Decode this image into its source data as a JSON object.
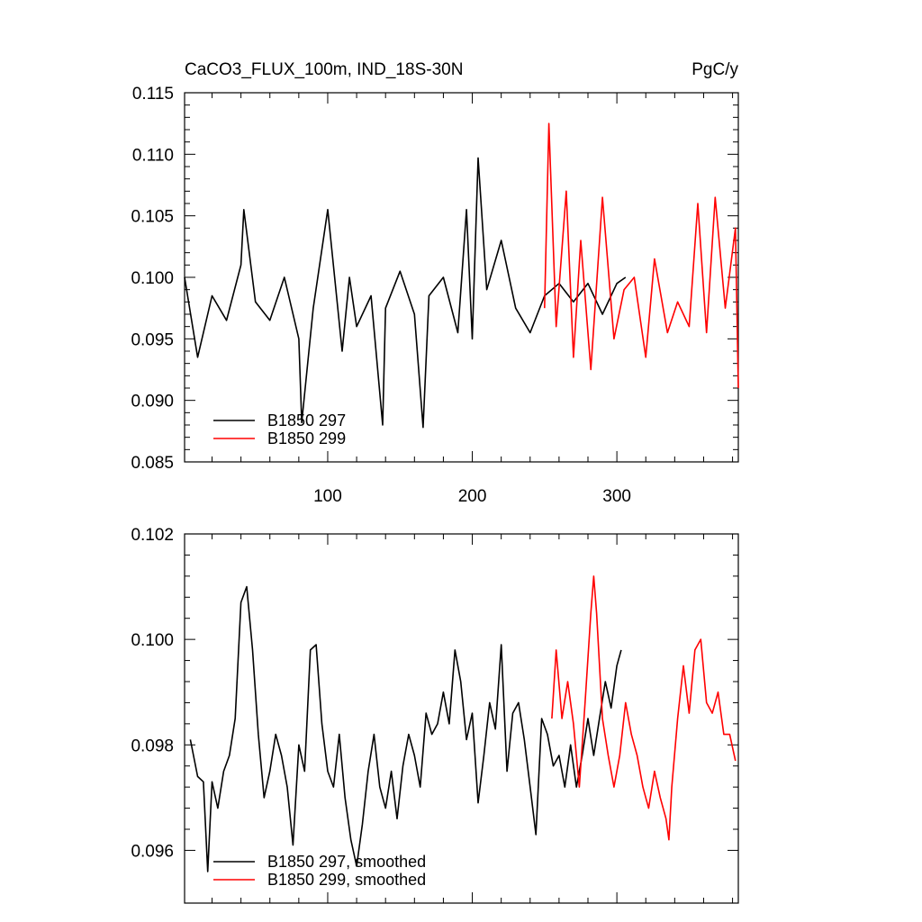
{
  "figure": {
    "left_title": "CaCO3_FLUX_100m, IND_18S-30N",
    "right_title": "PgC/y"
  },
  "chart_data": [
    {
      "type": "line",
      "xlim": [
        1,
        384
      ],
      "ylim": [
        0.085,
        0.115
      ],
      "yticks": [
        "0.085",
        "0.090",
        "0.095",
        "0.100",
        "0.105",
        "0.110",
        "0.115"
      ],
      "xticks": [
        "100",
        "200",
        "300"
      ],
      "legend_position": "bottom-left",
      "series": [
        {
          "name": "B1850 297",
          "color": "#000000",
          "x": [
            1,
            10,
            20,
            30,
            40,
            42,
            50,
            60,
            70,
            80,
            82,
            90,
            100,
            110,
            115,
            120,
            130,
            138,
            140,
            150,
            160,
            166,
            170,
            180,
            190,
            196,
            200,
            204,
            210,
            220,
            230,
            240,
            250,
            260,
            270,
            280,
            290,
            300,
            306
          ],
          "y": [
            0.1,
            0.0935,
            0.0985,
            0.0965,
            0.101,
            0.1055,
            0.098,
            0.0965,
            0.1,
            0.095,
            0.0882,
            0.0975,
            0.1055,
            0.094,
            0.1,
            0.096,
            0.0985,
            0.088,
            0.0975,
            0.1005,
            0.097,
            0.0878,
            0.0985,
            0.1,
            0.0955,
            0.1055,
            0.095,
            0.1097,
            0.099,
            0.103,
            0.0975,
            0.0955,
            0.0985,
            0.0995,
            0.098,
            0.0995,
            0.097,
            0.0995,
            0.1
          ]
        },
        {
          "name": "B1850 299",
          "color": "#ff0000",
          "x": [
            250,
            253,
            258,
            265,
            270,
            275,
            282,
            290,
            298,
            305,
            312,
            320,
            326,
            335,
            342,
            350,
            356,
            362,
            368,
            375,
            382,
            384
          ],
          "y": [
            0.0975,
            0.1125,
            0.096,
            0.107,
            0.0935,
            0.103,
            0.0925,
            0.1065,
            0.095,
            0.099,
            0.1,
            0.0935,
            0.1015,
            0.0955,
            0.098,
            0.096,
            0.106,
            0.0955,
            0.1065,
            0.0975,
            0.104,
            0.091
          ]
        }
      ]
    },
    {
      "type": "line",
      "xlim": [
        1,
        384
      ],
      "ylim": [
        0.095,
        0.102
      ],
      "yticks": [
        "0.096",
        "0.098",
        "0.100",
        "0.102"
      ],
      "xticks": [],
      "legend_position": "bottom-left",
      "series": [
        {
          "name": "B1850 297, smoothed",
          "color": "#000000",
          "x": [
            5,
            10,
            14,
            17,
            20,
            24,
            28,
            32,
            36,
            40,
            44,
            48,
            52,
            56,
            60,
            64,
            68,
            72,
            76,
            80,
            84,
            88,
            92,
            96,
            100,
            104,
            108,
            112,
            116,
            120,
            124,
            128,
            132,
            136,
            140,
            144,
            148,
            152,
            156,
            160,
            164,
            168,
            172,
            176,
            180,
            184,
            188,
            192,
            196,
            200,
            204,
            208,
            212,
            216,
            220,
            224,
            228,
            232,
            236,
            240,
            244,
            248,
            252,
            256,
            260,
            264,
            268,
            272,
            276,
            280,
            284,
            288,
            292,
            296,
            300,
            303
          ],
          "y": [
            0.0981,
            0.0974,
            0.0973,
            0.0956,
            0.0973,
            0.0968,
            0.0975,
            0.0978,
            0.0985,
            0.1007,
            0.101,
            0.0998,
            0.0982,
            0.097,
            0.0975,
            0.0982,
            0.0978,
            0.0972,
            0.0961,
            0.098,
            0.0975,
            0.0998,
            0.0999,
            0.0984,
            0.0975,
            0.0972,
            0.0982,
            0.097,
            0.0962,
            0.0957,
            0.0965,
            0.0975,
            0.0982,
            0.0972,
            0.0968,
            0.0975,
            0.0966,
            0.0976,
            0.0982,
            0.0978,
            0.0972,
            0.0986,
            0.0982,
            0.0984,
            0.099,
            0.0984,
            0.0998,
            0.0992,
            0.0981,
            0.0986,
            0.0969,
            0.0978,
            0.0988,
            0.0983,
            0.0999,
            0.0975,
            0.0986,
            0.0988,
            0.0981,
            0.0972,
            0.0963,
            0.0985,
            0.0982,
            0.0976,
            0.0978,
            0.0972,
            0.098,
            0.0972,
            0.0978,
            0.0985,
            0.0978,
            0.0985,
            0.0992,
            0.0987,
            0.0995,
            0.0998
          ]
        },
        {
          "name": "B1850 299, smoothed",
          "color": "#ff0000",
          "x": [
            255,
            258,
            262,
            266,
            270,
            274,
            278,
            282,
            284,
            286,
            290,
            294,
            298,
            302,
            306,
            310,
            314,
            318,
            322,
            326,
            330,
            334,
            336,
            338,
            342,
            346,
            350,
            354,
            358,
            362,
            366,
            370,
            374,
            378,
            382
          ],
          "y": [
            0.0985,
            0.0998,
            0.0985,
            0.0992,
            0.0984,
            0.0972,
            0.0988,
            0.1005,
            0.1012,
            0.1005,
            0.0985,
            0.0978,
            0.0972,
            0.0978,
            0.0988,
            0.0982,
            0.0978,
            0.0972,
            0.0968,
            0.0975,
            0.097,
            0.0966,
            0.0962,
            0.0972,
            0.0985,
            0.0995,
            0.0986,
            0.0998,
            0.1,
            0.0988,
            0.0986,
            0.099,
            0.0982,
            0.0982,
            0.0977
          ]
        }
      ]
    }
  ]
}
